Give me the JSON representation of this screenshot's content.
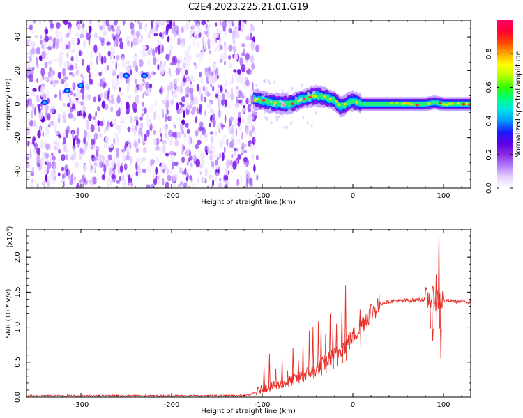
{
  "title": "C2E4.2023.225.21.01.G19",
  "chart_data": [
    {
      "type": "heatmap",
      "xlabel": "Height of straight line (km)",
      "ylabel": "Frequency (Hz)",
      "xlim": [
        -360,
        130
      ],
      "ylim": [
        -50,
        50
      ],
      "xticks": [
        -300,
        -200,
        -100,
        0,
        100
      ],
      "yticks": [
        -40,
        -20,
        0,
        20,
        40
      ],
      "noise_region_x": [
        -360,
        -110
      ],
      "signal_region_x": [
        -110,
        130
      ],
      "frequency_track": {
        "x": [
          -110,
          -100,
          -90,
          -80,
          -70,
          -60,
          -50,
          -40,
          -30,
          -20,
          -15,
          -10,
          -5,
          0,
          10,
          20,
          40,
          60,
          80,
          90,
          100,
          110,
          120,
          130
        ],
        "y": [
          3,
          2,
          1,
          0,
          0,
          2,
          4,
          5,
          4,
          2,
          -1,
          -1,
          1,
          2,
          0,
          0,
          0,
          0,
          0,
          1,
          0,
          0,
          0,
          0
        ]
      },
      "noise_streak_points": {
        "x": [
          -340,
          -315,
          -300,
          -250,
          -230
        ],
        "y": [
          1,
          8,
          11,
          17,
          17
        ]
      },
      "colorbar": {
        "label": "Normalized spectral amplitude",
        "range": [
          0.0,
          1.0
        ],
        "ticks": [
          0.0,
          0.2,
          0.4,
          0.6,
          0.8
        ],
        "colors": [
          "#ffffff",
          "#e6d0ff",
          "#b57cff",
          "#8a2be2",
          "#5b00e6",
          "#1a1aff",
          "#0099ff",
          "#00e5e5",
          "#00ff80",
          "#33ff00",
          "#b3ff00",
          "#ffff00",
          "#ffaa00",
          "#ff4400",
          "#ff0033",
          "#ff0066"
        ]
      }
    },
    {
      "type": "line",
      "xlabel": "Height of straight line (km)",
      "ylabel": "SNR (10 * v/v)",
      "ylabel_multiplier": "(x10",
      "ylabel_multiplier_exp": "4",
      "ylabel_multiplier_close": ")",
      "xlim": [
        -360,
        130
      ],
      "ylim": [
        0.0,
        2.4
      ],
      "xticks": [
        -300,
        -200,
        -100,
        0,
        100
      ],
      "yticks": [
        0.0,
        0.5,
        1.0,
        1.5,
        2.0
      ],
      "line_color": "#e8302a",
      "trend": {
        "x": [
          -360,
          -120,
          -110,
          -100,
          -80,
          -60,
          -40,
          -20,
          -10,
          0,
          10,
          20,
          30,
          40,
          60,
          80,
          90,
          95,
          100,
          110,
          130
        ],
        "y": [
          0.02,
          0.02,
          0.05,
          0.12,
          0.18,
          0.28,
          0.4,
          0.6,
          0.72,
          0.85,
          1.05,
          1.22,
          1.33,
          1.37,
          1.38,
          1.4,
          1.4,
          1.4,
          1.38,
          1.37,
          1.36
        ]
      },
      "spikes": {
        "x": [
          -98,
          -92,
          -85,
          -78,
          -72,
          -66,
          -60,
          -55,
          -48,
          -44,
          -38,
          -35,
          -30,
          -25,
          -22,
          -18,
          -12,
          -8,
          8,
          85,
          88,
          92,
          95,
          97
        ],
        "y": [
          0.45,
          0.62,
          0.4,
          0.55,
          0.38,
          0.7,
          0.52,
          0.78,
          0.95,
          1.0,
          1.08,
          1.0,
          0.9,
          1.2,
          1.0,
          1.05,
          1.25,
          1.6,
          1.25,
          1.5,
          0.8,
          1.75,
          2.38,
          0.55
        ]
      }
    }
  ]
}
